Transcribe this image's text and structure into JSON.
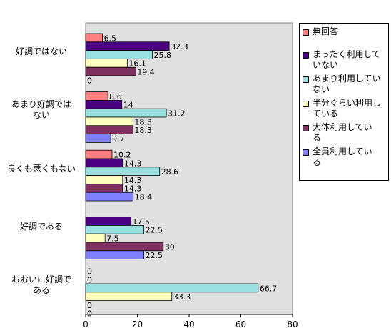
{
  "chart_data": {
    "type": "bar",
    "orientation": "horizontal",
    "categories": [
      "好調ではない",
      "あまり好調ではない",
      "良くも悪くもない",
      "好調である",
      "おおいに好調である"
    ],
    "category_display": [
      [
        "好調ではない"
      ],
      [
        "あまり好調では",
        "ない"
      ],
      [
        "良くも悪くもない"
      ],
      [
        "好調である"
      ],
      [
        "おおいに好調で",
        "ある"
      ]
    ],
    "series": [
      {
        "name": "無回答",
        "color": "#ff8080",
        "values": [
          6.5,
          8.6,
          10.2,
          null,
          0
        ]
      },
      {
        "name": "まったく利用していない",
        "color": "#4b0082",
        "values": [
          32.3,
          14,
          14.3,
          17.5,
          0
        ]
      },
      {
        "name": "あまり利用していない",
        "color": "#99e0e0",
        "values": [
          25.8,
          31.2,
          28.6,
          22.5,
          66.7
        ]
      },
      {
        "name": "半分ぐらい利用している",
        "color": "#ffffc0",
        "values": [
          16.1,
          18.3,
          14.3,
          7.5,
          33.3
        ]
      },
      {
        "name": "大体利用している",
        "color": "#803060",
        "values": [
          19.4,
          18.3,
          14.3,
          30,
          0
        ]
      },
      {
        "name": "全員利用している",
        "color": "#8080ff",
        "values": [
          0,
          9.7,
          18.4,
          22.5,
          0
        ]
      }
    ],
    "xlim": [
      0,
      80
    ],
    "xticks": [
      0,
      20,
      40,
      60,
      80
    ],
    "legend": "right",
    "plot_background": "#e0e0e0"
  },
  "legend_display": [
    [
      "無回答"
    ],
    [
      "まったく利用して",
      "いない"
    ],
    [
      "あまり利用してい",
      "ない"
    ],
    [
      "半分ぐらい利用し",
      "ている"
    ],
    [
      "大体利用してい",
      "る"
    ],
    [
      "全員利用してい",
      "る"
    ]
  ]
}
